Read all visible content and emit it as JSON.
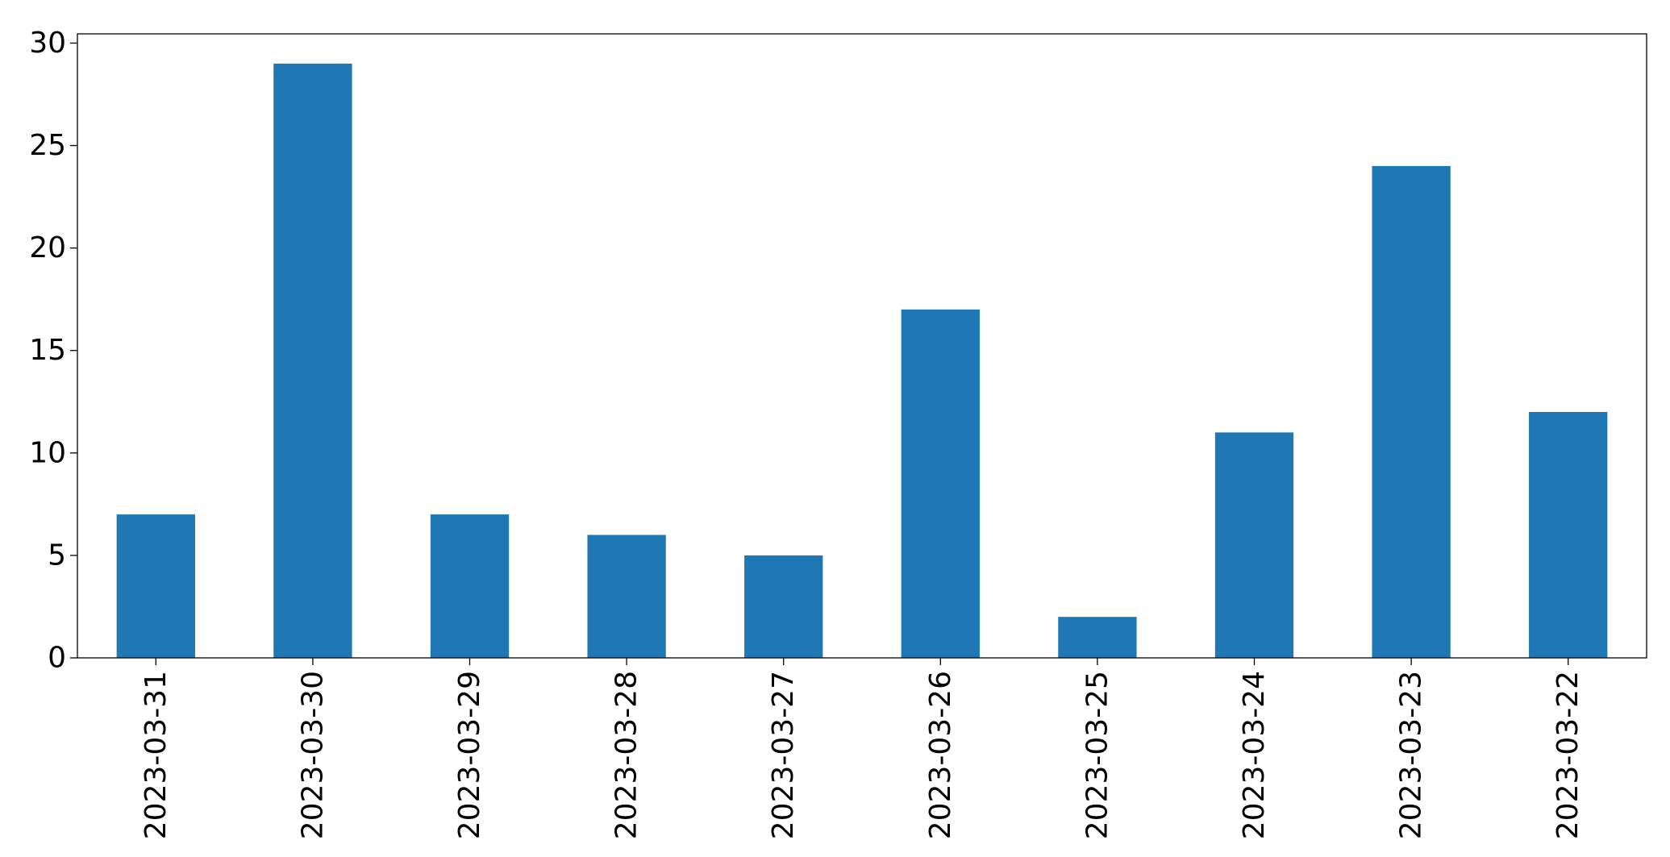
{
  "chart_data": {
    "type": "bar",
    "title": "",
    "xlabel": "",
    "ylabel": "",
    "categories": [
      "2023-03-31",
      "2023-03-30",
      "2023-03-29",
      "2023-03-28",
      "2023-03-27",
      "2023-03-26",
      "2023-03-25",
      "2023-03-24",
      "2023-03-23",
      "2023-03-22"
    ],
    "values": [
      7,
      29,
      7,
      6,
      5,
      17,
      2,
      11,
      24,
      12
    ],
    "ylim": [
      0,
      30.45
    ],
    "yticks": [
      0,
      5,
      10,
      15,
      20,
      25,
      30
    ],
    "grid": false,
    "legend": "none",
    "bar_color": "#1f77b4"
  }
}
